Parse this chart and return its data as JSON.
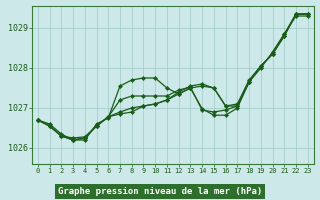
{
  "title": "Graphe pression niveau de la mer (hPa)",
  "background_color": "#cce8e8",
  "plot_bg_color": "#cce8e8",
  "grid_color": "#9dc8c8",
  "line_color": "#1a5c1a",
  "marker_color": "#1a5c1a",
  "xlim": [
    -0.5,
    23.5
  ],
  "ylim": [
    1025.6,
    1029.55
  ],
  "yticks": [
    1026,
    1027,
    1028,
    1029
  ],
  "xticks": [
    0,
    1,
    2,
    3,
    4,
    5,
    6,
    7,
    8,
    9,
    10,
    11,
    12,
    13,
    14,
    15,
    16,
    17,
    18,
    19,
    20,
    21,
    22,
    23
  ],
  "series": [
    {
      "x": [
        0,
        1,
        2,
        3,
        4,
        5,
        6,
        7,
        8,
        9,
        10,
        11,
        12,
        13,
        14,
        15,
        16,
        17,
        18,
        19,
        20,
        21,
        22,
        23
      ],
      "y": [
        1026.7,
        1026.6,
        1026.35,
        1026.2,
        1026.2,
        1026.6,
        1026.75,
        1027.55,
        1027.7,
        1027.75,
        1027.75,
        1027.5,
        1027.35,
        1027.5,
        1026.98,
        1026.82,
        1026.82,
        1027.0,
        1027.65,
        1028.0,
        1028.4,
        1028.85,
        1029.3,
        1029.3
      ]
    },
    {
      "x": [
        0,
        1,
        2,
        3,
        4,
        5,
        6,
        7,
        8,
        9,
        10,
        11,
        12,
        13,
        14,
        15,
        16,
        17,
        18,
        19,
        20,
        21,
        22,
        23
      ],
      "y": [
        1026.7,
        1026.55,
        1026.3,
        1026.25,
        1026.28,
        1026.55,
        1026.78,
        1027.2,
        1027.3,
        1027.3,
        1027.3,
        1027.3,
        1027.45,
        1027.52,
        1026.95,
        1026.9,
        1026.95,
        1027.05,
        1027.65,
        1028.05,
        1028.35,
        1028.85,
        1029.35,
        1029.35
      ]
    },
    {
      "x": [
        0,
        1,
        2,
        3,
        4,
        5,
        6,
        7,
        8,
        9,
        10,
        11,
        12,
        13,
        14,
        15,
        16,
        17,
        18,
        19,
        20,
        21,
        22,
        23
      ],
      "y": [
        1026.7,
        1026.55,
        1026.3,
        1026.2,
        1026.25,
        1026.55,
        1026.78,
        1026.9,
        1027.0,
        1027.05,
        1027.1,
        1027.2,
        1027.35,
        1027.5,
        1027.55,
        1027.5,
        1027.05,
        1027.05,
        1027.65,
        1028.05,
        1028.35,
        1028.8,
        1029.35,
        1029.35
      ]
    },
    {
      "x": [
        0,
        1,
        2,
        3,
        4,
        5,
        6,
        7,
        8,
        9,
        10,
        11,
        12,
        13,
        14,
        15,
        16,
        17,
        18,
        19,
        20,
        21,
        22,
        23
      ],
      "y": [
        1026.7,
        1026.55,
        1026.3,
        1026.2,
        1026.25,
        1026.55,
        1026.78,
        1026.85,
        1026.9,
        1027.05,
        1027.1,
        1027.2,
        1027.4,
        1027.55,
        1027.6,
        1027.5,
        1027.05,
        1027.1,
        1027.7,
        1028.05,
        1028.35,
        1028.8,
        1029.35,
        1029.35
      ]
    }
  ]
}
